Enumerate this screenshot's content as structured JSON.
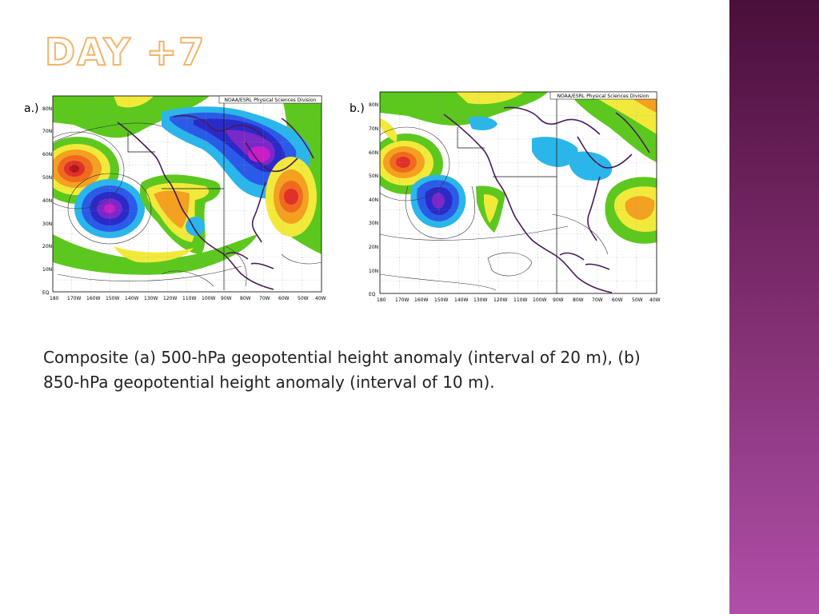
{
  "slide": {
    "title": "DAY +7",
    "caption": "Composite (a) 500-hPa geopotential height anomaly (interval of 20 m), (b) 850-hPa geopotential height anomaly (interval of 10 m)."
  },
  "panels": [
    {
      "label": "a.)",
      "credit": "NOAA/ESRL Physical Sciences Division",
      "lat_ticks": [
        "80N",
        "70N",
        "60N",
        "50N",
        "40N",
        "30N",
        "20N",
        "10N",
        "EQ"
      ],
      "lon_ticks": [
        "180",
        "170W",
        "160W",
        "150W",
        "140W",
        "130W",
        "120W",
        "110W",
        "100W",
        "90W",
        "80W",
        "70W",
        "60W",
        "50W",
        "40W"
      ]
    },
    {
      "label": "b.)",
      "credit": "NOAA/ESRL Physical Sciences Division",
      "lat_ticks": [
        "80N",
        "70N",
        "60N",
        "50N",
        "40N",
        "30N",
        "20N",
        "10N",
        "EQ"
      ],
      "lon_ticks": [
        "180",
        "170W",
        "160W",
        "150W",
        "140W",
        "130W",
        "120W",
        "110W",
        "100W",
        "90W",
        "80W",
        "70W",
        "60W",
        "50W",
        "40W"
      ]
    }
  ],
  "colors": {
    "green": "#5cc81e",
    "yellow": "#f2ea3a",
    "orange": "#f4a020",
    "red_orange": "#f06a1e",
    "red": "#e0302a",
    "dark_red": "#b01818",
    "cyan": "#2ab6ea",
    "blue": "#2a5be8",
    "dark_blue": "#2a2ac8",
    "purple": "#7a28c8",
    "magenta": "#c81ec8",
    "coast": "#4a1a5a"
  }
}
